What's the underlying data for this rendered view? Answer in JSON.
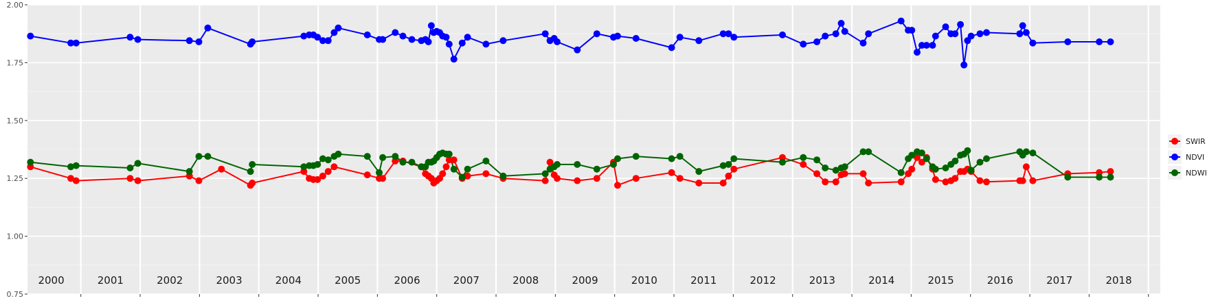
{
  "chart_data": {
    "type": "line",
    "title": "",
    "xlabel": "",
    "ylabel": "",
    "xlim": [
      1999.6,
      2018.7
    ],
    "ylim": [
      0.75,
      2.0
    ],
    "yticks": [
      "0.75",
      "1.00",
      "1.25",
      "1.50",
      "1.75",
      "2.00"
    ],
    "ytick_values": [
      0.75,
      1.0,
      1.25,
      1.5,
      1.75,
      2.0
    ],
    "year_labels": [
      "2000",
      "2001",
      "2002",
      "2003",
      "2004",
      "2005",
      "2006",
      "2007",
      "2008",
      "2009",
      "2010",
      "2011",
      "2012",
      "2013",
      "2014",
      "2015",
      "2016",
      "2017",
      "2018"
    ],
    "grid": true,
    "legend_position": "right",
    "series": [
      {
        "name": "SWIR",
        "color": "#ff0000",
        "x": [
          1999.65,
          2000.33,
          2000.42,
          2001.33,
          2001.46,
          2002.33,
          2002.49,
          2002.87,
          2003.36,
          2003.39,
          2004.26,
          2004.35,
          2004.42,
          2004.49,
          2004.58,
          2004.67,
          2004.77,
          2005.33,
          2005.53,
          2005.59,
          2005.8,
          2005.93,
          2006.24,
          2006.31,
          2006.36,
          2006.41,
          2006.45,
          2006.5,
          2006.55,
          2006.6,
          2006.66,
          2006.71,
          2006.79,
          2006.93,
          2007.02,
          2007.33,
          2007.62,
          2008.33,
          2008.41,
          2008.48,
          2008.53,
          2008.87,
          2009.2,
          2009.48,
          2009.55,
          2009.86,
          2010.46,
          2010.6,
          2010.92,
          2011.33,
          2011.42,
          2011.51,
          2012.33,
          2012.68,
          2012.91,
          2013.05,
          2013.23,
          2013.32,
          2013.38,
          2013.69,
          2013.78,
          2014.33,
          2014.45,
          2014.51,
          2014.6,
          2014.68,
          2014.76,
          2014.86,
          2014.91,
          2015.08,
          2015.17,
          2015.24,
          2015.33,
          2015.39,
          2015.45,
          2015.51,
          2015.66,
          2015.77,
          2016.33,
          2016.38,
          2016.44,
          2016.55,
          2017.14,
          2017.67,
          2017.86
        ],
        "values": [
          1.3,
          1.25,
          1.24,
          1.25,
          1.24,
          1.26,
          1.24,
          1.29,
          1.22,
          1.23,
          1.28,
          1.25,
          1.245,
          1.245,
          1.26,
          1.28,
          1.3,
          1.265,
          1.25,
          1.25,
          1.325,
          1.325,
          1.3,
          1.27,
          1.26,
          1.25,
          1.23,
          1.24,
          1.25,
          1.27,
          1.3,
          1.33,
          1.33,
          1.25,
          1.26,
          1.27,
          1.25,
          1.24,
          1.32,
          1.265,
          1.25,
          1.24,
          1.25,
          1.32,
          1.22,
          1.25,
          1.275,
          1.25,
          1.23,
          1.23,
          1.26,
          1.29,
          1.34,
          1.31,
          1.27,
          1.235,
          1.235,
          1.265,
          1.27,
          1.27,
          1.23,
          1.235,
          1.27,
          1.29,
          1.34,
          1.32,
          1.34,
          1.29,
          1.245,
          1.235,
          1.24,
          1.25,
          1.28,
          1.28,
          1.29,
          1.28,
          1.24,
          1.235,
          1.24,
          1.24,
          1.3,
          1.24,
          1.27,
          1.275,
          1.28
        ]
      },
      {
        "name": "NDVI",
        "color": "#0000ff",
        "x": [
          1999.65,
          2000.33,
          2000.42,
          2001.33,
          2001.46,
          2002.33,
          2002.49,
          2002.64,
          2003.36,
          2003.39,
          2004.26,
          2004.35,
          2004.42,
          2004.49,
          2004.58,
          2004.67,
          2004.77,
          2004.84,
          2005.33,
          2005.53,
          2005.59,
          2005.8,
          2005.93,
          2006.08,
          2006.24,
          2006.31,
          2006.36,
          2006.41,
          2006.45,
          2006.5,
          2006.55,
          2006.6,
          2006.66,
          2006.71,
          2006.79,
          2006.93,
          2007.02,
          2007.33,
          2007.62,
          2008.33,
          2008.41,
          2008.48,
          2008.53,
          2008.87,
          2009.2,
          2009.48,
          2009.55,
          2009.86,
          2010.46,
          2010.6,
          2010.92,
          2011.33,
          2011.42,
          2011.51,
          2012.33,
          2012.68,
          2012.91,
          2013.05,
          2013.23,
          2013.32,
          2013.38,
          2013.69,
          2013.78,
          2014.33,
          2014.45,
          2014.51,
          2014.6,
          2014.68,
          2014.76,
          2014.86,
          2014.91,
          2015.08,
          2015.17,
          2015.24,
          2015.33,
          2015.39,
          2015.45,
          2015.51,
          2015.66,
          2015.77,
          2016.33,
          2016.38,
          2016.44,
          2016.55,
          2017.14,
          2017.67,
          2017.86
        ],
        "values": [
          1.865,
          1.835,
          1.835,
          1.86,
          1.85,
          1.845,
          1.84,
          1.9,
          1.83,
          1.84,
          1.865,
          1.87,
          1.87,
          1.86,
          1.845,
          1.845,
          1.88,
          1.9,
          1.87,
          1.85,
          1.85,
          1.88,
          1.865,
          1.85,
          1.845,
          1.85,
          1.84,
          1.91,
          1.88,
          1.885,
          1.88,
          1.865,
          1.86,
          1.83,
          1.765,
          1.835,
          1.86,
          1.83,
          1.845,
          1.875,
          1.845,
          1.855,
          1.84,
          1.805,
          1.875,
          1.86,
          1.865,
          1.855,
          1.815,
          1.86,
          1.845,
          1.875,
          1.875,
          1.86,
          1.87,
          1.83,
          1.84,
          1.865,
          1.875,
          1.92,
          1.885,
          1.835,
          1.875,
          1.93,
          1.89,
          1.89,
          1.795,
          1.825,
          1.825,
          1.825,
          1.865,
          1.905,
          1.875,
          1.875,
          1.915,
          1.74,
          1.845,
          1.865,
          1.875,
          1.88,
          1.875,
          1.91,
          1.88,
          1.835,
          1.84,
          1.84,
          1.84
        ]
      },
      {
        "name": "NDWI",
        "color": "#006400",
        "x": [
          1999.65,
          2000.33,
          2000.42,
          2001.33,
          2001.46,
          2002.33,
          2002.49,
          2002.64,
          2003.36,
          2003.39,
          2004.26,
          2004.35,
          2004.42,
          2004.49,
          2004.58,
          2004.67,
          2004.77,
          2004.84,
          2005.33,
          2005.53,
          2005.59,
          2005.8,
          2005.93,
          2006.08,
          2006.24,
          2006.31,
          2006.36,
          2006.41,
          2006.45,
          2006.5,
          2006.55,
          2006.6,
          2006.66,
          2006.71,
          2006.79,
          2006.93,
          2007.02,
          2007.33,
          2007.62,
          2008.33,
          2008.41,
          2008.48,
          2008.53,
          2008.87,
          2009.2,
          2009.48,
          2009.55,
          2009.86,
          2010.46,
          2010.6,
          2010.92,
          2011.33,
          2011.42,
          2011.51,
          2012.33,
          2012.68,
          2012.91,
          2013.05,
          2013.23,
          2013.32,
          2013.38,
          2013.69,
          2013.78,
          2014.33,
          2014.45,
          2014.51,
          2014.6,
          2014.68,
          2014.76,
          2014.86,
          2014.91,
          2015.08,
          2015.17,
          2015.24,
          2015.33,
          2015.39,
          2015.45,
          2015.51,
          2015.66,
          2015.77,
          2016.33,
          2016.38,
          2016.44,
          2016.55,
          2017.14,
          2017.67,
          2017.86
        ],
        "values": [
          1.32,
          1.3,
          1.305,
          1.295,
          1.315,
          1.28,
          1.345,
          1.345,
          1.28,
          1.31,
          1.3,
          1.305,
          1.305,
          1.31,
          1.335,
          1.33,
          1.345,
          1.355,
          1.345,
          1.275,
          1.34,
          1.345,
          1.32,
          1.32,
          1.3,
          1.3,
          1.32,
          1.32,
          1.325,
          1.34,
          1.355,
          1.36,
          1.355,
          1.355,
          1.29,
          1.255,
          1.29,
          1.325,
          1.26,
          1.27,
          1.29,
          1.3,
          1.31,
          1.31,
          1.29,
          1.31,
          1.335,
          1.345,
          1.335,
          1.345,
          1.28,
          1.305,
          1.31,
          1.335,
          1.32,
          1.34,
          1.33,
          1.295,
          1.285,
          1.295,
          1.3,
          1.365,
          1.365,
          1.275,
          1.335,
          1.35,
          1.365,
          1.36,
          1.335,
          1.3,
          1.29,
          1.295,
          1.31,
          1.325,
          1.35,
          1.355,
          1.37,
          1.285,
          1.32,
          1.335,
          1.365,
          1.35,
          1.365,
          1.36,
          1.255,
          1.255,
          1.255
        ]
      }
    ]
  }
}
